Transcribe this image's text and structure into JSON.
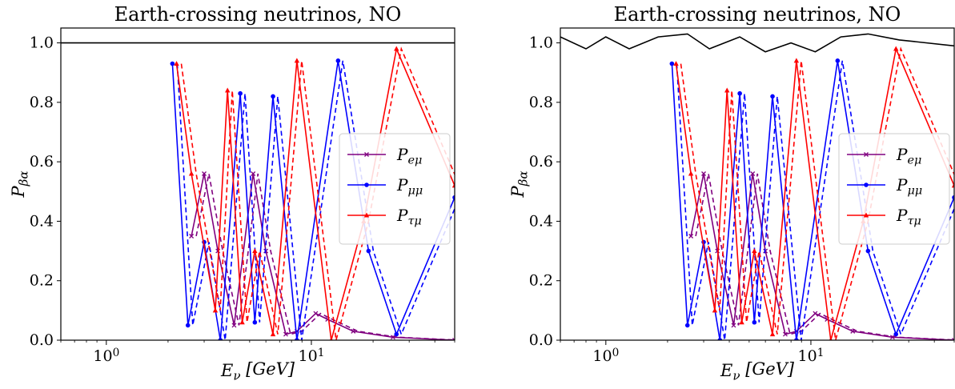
{
  "chart_data": [
    {
      "type": "line",
      "title": "Earth-crossing neutrinos, NO",
      "xlabel": "E_ν [GeV]",
      "ylabel": "P_βα",
      "xscale": "log",
      "xlim": [
        0.6,
        50
      ],
      "ylim": [
        0.0,
        1.05
      ],
      "x_ticks": [
        {
          "value": 1,
          "label": "10^0"
        },
        {
          "value": 10,
          "label": "10^1"
        }
      ],
      "y_ticks": [
        "0.0",
        "0.2",
        "0.4",
        "0.6",
        "0.8",
        "1.0"
      ],
      "legend_position": "center-right",
      "series": [
        {
          "name": "P_eμ",
          "color": "#800080",
          "marker": "x",
          "style": "solid + dashed",
          "x": [
            2.6,
            3.0,
            3.5,
            4.2,
            5.2,
            6.0,
            7.5,
            8.5,
            10.5,
            12,
            16,
            25,
            50
          ],
          "values": [
            0.35,
            0.56,
            0.3,
            0.05,
            0.56,
            0.3,
            0.02,
            0.03,
            0.09,
            0.07,
            0.03,
            0.01,
            0.0
          ]
        },
        {
          "name": "P_μμ",
          "color": "#0000ff",
          "marker": "o",
          "style": "solid + dashed",
          "x": [
            2.1,
            2.5,
            3.0,
            3.6,
            4.5,
            5.3,
            6.5,
            8.5,
            13.5,
            19,
            26,
            50
          ],
          "values": [
            0.93,
            0.05,
            0.33,
            0.0,
            0.83,
            0.06,
            0.82,
            0.0,
            0.94,
            0.3,
            0.02,
            0.48
          ]
        },
        {
          "name": "P_τμ",
          "color": "#ff0000",
          "marker": "^",
          "style": "solid + dashed",
          "x": [
            2.2,
            2.6,
            3.4,
            3.9,
            4.6,
            5.3,
            6.5,
            8.5,
            12.5,
            18,
            26,
            50
          ],
          "values": [
            0.93,
            0.56,
            0.1,
            0.84,
            0.06,
            0.3,
            0.02,
            0.94,
            0.0,
            0.4,
            0.98,
            0.52
          ]
        },
        {
          "name": "",
          "color": "#000000",
          "style": "solid",
          "x": [
            0.6,
            50
          ],
          "values": [
            1.0,
            1.0
          ]
        }
      ]
    },
    {
      "type": "line",
      "title": "Earth-crossing neutrinos, NO",
      "xlabel": "E_ν [GeV]",
      "ylabel": "P_βα",
      "xscale": "log",
      "xlim": [
        0.6,
        50
      ],
      "ylim": [
        0.0,
        1.05
      ],
      "x_ticks": [
        {
          "value": 1,
          "label": "10^0"
        },
        {
          "value": 10,
          "label": "10^1"
        }
      ],
      "y_ticks": [
        "0.0",
        "0.2",
        "0.4",
        "0.6",
        "0.8",
        "1.0"
      ],
      "legend_position": "center-right",
      "series": [
        {
          "name": "P_eμ",
          "color": "#800080",
          "marker": "x",
          "style": "solid + dashed",
          "x": [
            2.6,
            3.0,
            3.5,
            4.2,
            5.2,
            6.0,
            7.5,
            8.5,
            10.5,
            12,
            16,
            25,
            50
          ],
          "values": [
            0.35,
            0.56,
            0.3,
            0.05,
            0.56,
            0.3,
            0.02,
            0.03,
            0.09,
            0.07,
            0.03,
            0.01,
            0.0
          ]
        },
        {
          "name": "P_μμ",
          "color": "#0000ff",
          "marker": "o",
          "style": "solid + dashed",
          "x": [
            2.1,
            2.5,
            3.0,
            3.6,
            4.5,
            5.3,
            6.5,
            8.5,
            13.5,
            19,
            26,
            50
          ],
          "values": [
            0.93,
            0.05,
            0.33,
            0.0,
            0.83,
            0.06,
            0.82,
            0.0,
            0.94,
            0.3,
            0.02,
            0.48
          ]
        },
        {
          "name": "P_τμ",
          "color": "#ff0000",
          "marker": "^",
          "style": "solid + dashed",
          "x": [
            2.2,
            2.6,
            3.4,
            3.9,
            4.6,
            5.3,
            6.5,
            8.5,
            12.5,
            18,
            26,
            50
          ],
          "values": [
            0.93,
            0.56,
            0.1,
            0.84,
            0.06,
            0.3,
            0.02,
            0.94,
            0.0,
            0.4,
            0.98,
            0.52
          ]
        },
        {
          "name": "",
          "color": "#000000",
          "style": "solid",
          "x": [
            0.6,
            0.8,
            1.0,
            1.3,
            1.8,
            2.5,
            3.2,
            4.5,
            6.0,
            8.0,
            10.5,
            14,
            19,
            27,
            50
          ],
          "values": [
            1.02,
            0.98,
            1.02,
            0.98,
            1.02,
            1.03,
            0.98,
            1.02,
            0.97,
            1.0,
            0.97,
            1.02,
            1.03,
            1.01,
            0.99
          ]
        }
      ]
    }
  ]
}
